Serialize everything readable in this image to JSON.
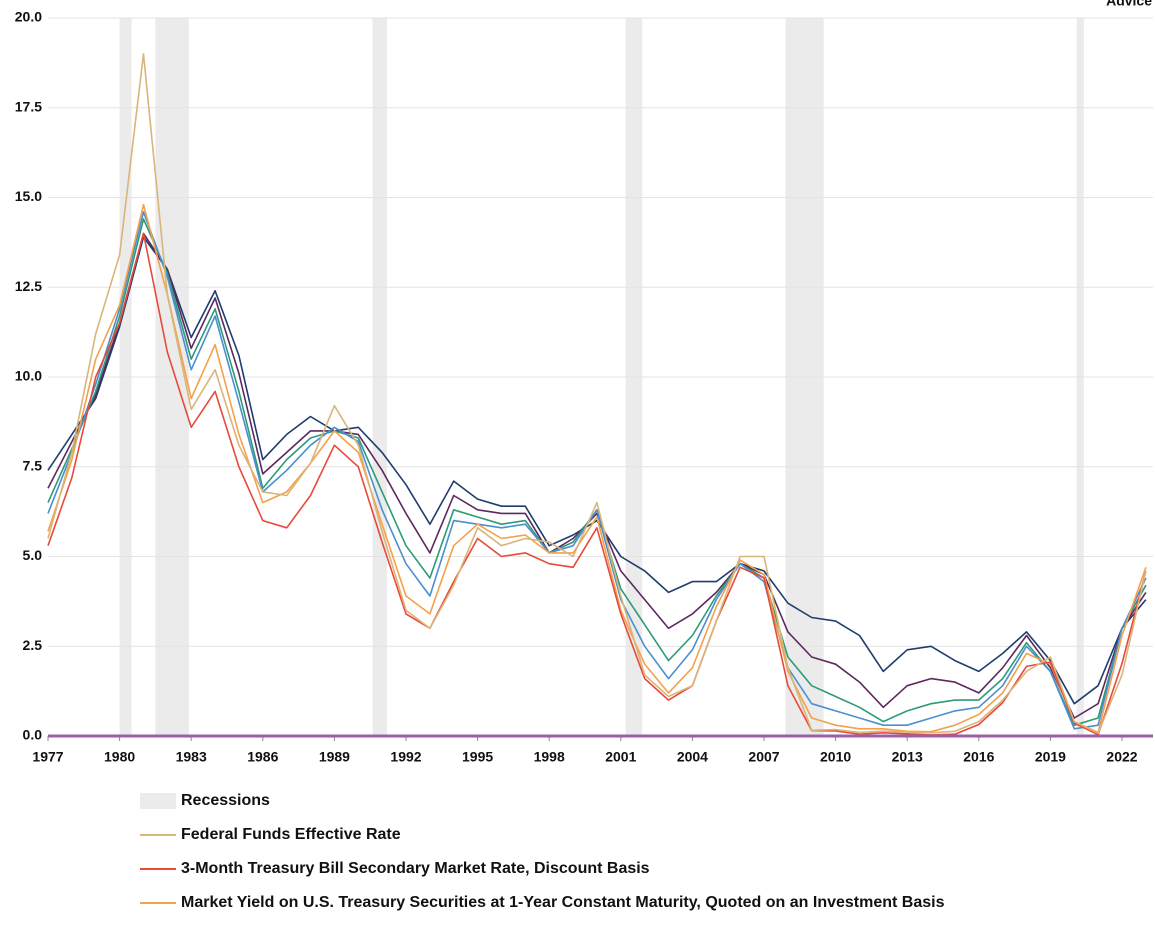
{
  "chart_data": {
    "type": "line",
    "logo_text": "Advice",
    "x": [
      1977,
      1978,
      1979,
      1980,
      1981,
      1982,
      1983,
      1984,
      1985,
      1986,
      1987,
      1988,
      1989,
      1990,
      1991,
      1992,
      1993,
      1994,
      1995,
      1996,
      1997,
      1998,
      1999,
      2000,
      2001,
      2002,
      2003,
      2004,
      2005,
      2006,
      2007,
      2008,
      2009,
      2010,
      2011,
      2012,
      2013,
      2014,
      2015,
      2016,
      2017,
      2018,
      2019,
      2020,
      2021,
      2022,
      2023
    ],
    "xlim": [
      1977,
      2023.3
    ],
    "xticks": [
      1977,
      1980,
      1983,
      1986,
      1989,
      1992,
      1995,
      1998,
      2001,
      2004,
      2007,
      2010,
      2013,
      2016,
      2019,
      2022
    ],
    "ylim": [
      0,
      20
    ],
    "yticks": [
      {
        "value": 0,
        "label": "0.0"
      },
      2.5,
      {
        "value": 5,
        "label": "5.0"
      },
      7.5,
      {
        "value": 10,
        "label": "10.0"
      },
      12.5,
      {
        "value": 15,
        "label": "15.0"
      },
      17.5,
      {
        "value": 20,
        "label": "20.0"
      }
    ],
    "grid": true,
    "recessions": {
      "name": "Recessions",
      "color": "#ebebeb",
      "periods": [
        [
          1980.0,
          1980.5
        ],
        [
          1981.5,
          1982.9
        ],
        [
          1990.6,
          1991.2
        ],
        [
          2001.2,
          2001.9
        ],
        [
          2007.9,
          2009.5
        ],
        [
          2020.1,
          2020.4
        ]
      ]
    },
    "series": [
      {
        "color": "#1f3d6e",
        "values": [
          7.4,
          8.4,
          9.4,
          11.4,
          13.9,
          13.0,
          11.1,
          12.4,
          10.6,
          7.7,
          8.4,
          8.9,
          8.5,
          8.6,
          7.9,
          7.0,
          5.9,
          7.1,
          6.6,
          6.4,
          6.4,
          5.3,
          5.6,
          6.0,
          5.0,
          4.6,
          4.0,
          4.3,
          4.3,
          4.8,
          4.6,
          3.7,
          3.3,
          3.2,
          2.8,
          1.8,
          2.4,
          2.5,
          2.1,
          1.8,
          2.3,
          2.9,
          2.1,
          0.9,
          1.4,
          3.0,
          3.8
        ]
      },
      {
        "color": "#5c2a5e",
        "values": [
          6.9,
          8.2,
          9.5,
          11.5,
          14.0,
          13.0,
          10.8,
          12.2,
          10.1,
          7.3,
          7.9,
          8.5,
          8.5,
          8.4,
          7.4,
          6.2,
          5.1,
          6.7,
          6.3,
          6.2,
          6.2,
          5.1,
          5.5,
          6.2,
          4.6,
          3.8,
          3.0,
          3.4,
          4.0,
          4.8,
          4.5,
          2.9,
          2.2,
          2.0,
          1.5,
          0.8,
          1.4,
          1.6,
          1.5,
          1.2,
          1.9,
          2.8,
          1.9,
          0.5,
          0.9,
          3.0,
          4.0
        ]
      },
      {
        "color": "#2e9a7a",
        "values": [
          6.5,
          8.0,
          9.6,
          11.7,
          14.4,
          12.9,
          10.5,
          11.9,
          9.6,
          6.9,
          7.7,
          8.3,
          8.5,
          8.3,
          6.8,
          5.3,
          4.4,
          6.3,
          6.1,
          5.9,
          6.0,
          5.1,
          5.4,
          6.3,
          4.1,
          3.1,
          2.1,
          2.8,
          3.9,
          4.8,
          4.4,
          2.2,
          1.4,
          1.1,
          0.8,
          0.4,
          0.7,
          0.9,
          1.0,
          1.0,
          1.6,
          2.6,
          1.8,
          0.3,
          0.5,
          3.0,
          4.2
        ]
      },
      {
        "color": "#4a8fd0",
        "values": [
          6.2,
          7.9,
          9.8,
          11.9,
          14.6,
          12.8,
          10.2,
          11.7,
          9.3,
          6.8,
          7.4,
          8.1,
          8.6,
          8.2,
          6.3,
          4.8,
          3.9,
          6.0,
          5.9,
          5.8,
          5.9,
          5.1,
          5.3,
          6.3,
          3.8,
          2.5,
          1.6,
          2.4,
          3.8,
          4.8,
          4.3,
          1.9,
          0.9,
          0.7,
          0.5,
          0.3,
          0.3,
          0.5,
          0.7,
          0.8,
          1.4,
          2.5,
          1.8,
          0.2,
          0.3,
          3.0,
          4.4
        ]
      },
      {
        "name": "Market Yield on U.S. Treasury Securities at 1-Year Constant Maturity, Quoted on an Investment Basis",
        "color": "#f5a04a",
        "values": [
          5.7,
          7.7,
          10.5,
          12.0,
          14.8,
          12.3,
          9.4,
          10.9,
          8.4,
          6.5,
          6.8,
          7.6,
          8.5,
          7.9,
          5.9,
          3.9,
          3.4,
          5.3,
          5.9,
          5.5,
          5.6,
          5.1,
          5.1,
          6.1,
          3.5,
          2.0,
          1.2,
          1.9,
          3.6,
          4.9,
          4.5,
          1.8,
          0.5,
          0.3,
          0.2,
          0.2,
          0.13,
          0.12,
          0.3,
          0.6,
          1.2,
          2.3,
          2.0,
          0.4,
          0.1,
          2.8,
          4.7
        ]
      },
      {
        "name": "3-Month Treasury Bill Secondary Market Rate, Discount Basis",
        "color": "#e8493a",
        "values": [
          5.3,
          7.2,
          10.0,
          11.5,
          14.0,
          10.7,
          8.6,
          9.6,
          7.5,
          6.0,
          5.8,
          6.7,
          8.1,
          7.5,
          5.4,
          3.4,
          3.0,
          4.3,
          5.5,
          5.0,
          5.1,
          4.8,
          4.7,
          5.8,
          3.4,
          1.6,
          1.0,
          1.4,
          3.2,
          4.7,
          4.4,
          1.4,
          0.15,
          0.14,
          0.05,
          0.09,
          0.06,
          0.03,
          0.05,
          0.32,
          0.93,
          1.94,
          2.06,
          0.36,
          0.04,
          2.02,
          4.6
        ]
      },
      {
        "name": "Federal Funds Effective Rate",
        "color": "#d9b57a",
        "values": [
          5.5,
          7.9,
          11.2,
          13.4,
          19.0,
          12.3,
          9.1,
          10.2,
          8.1,
          6.8,
          6.7,
          7.6,
          9.2,
          8.1,
          5.7,
          3.5,
          3.0,
          4.2,
          5.8,
          5.3,
          5.5,
          5.4,
          5.0,
          6.5,
          3.9,
          1.7,
          1.1,
          1.4,
          3.2,
          5.0,
          5.0,
          1.9,
          0.16,
          0.18,
          0.1,
          0.14,
          0.11,
          0.09,
          0.13,
          0.4,
          1.0,
          1.8,
          2.2,
          0.4,
          0.08,
          1.7,
          4.6
        ]
      }
    ]
  }
}
